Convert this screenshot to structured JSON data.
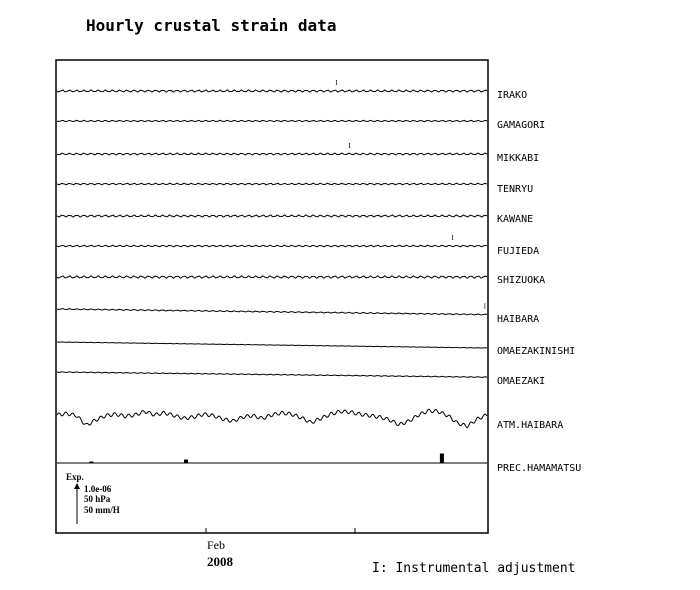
{
  "chart_data": {
    "type": "line",
    "title": "Hourly crustal strain data",
    "xlabel": "",
    "ylabel": "",
    "x_ticks": [
      {
        "label": "Feb",
        "sublabel": "2008"
      }
    ],
    "series": [
      {
        "name": "IRAKO",
        "trend": 0.0,
        "amp": 0.8,
        "cycles": 60,
        "adjustments": [
          0.65
        ]
      },
      {
        "name": "GAMAGORI",
        "trend": 0.0,
        "amp": 0.5,
        "cycles": 60,
        "adjustments": []
      },
      {
        "name": "MIKKABI",
        "trend": 0.0,
        "amp": 0.7,
        "cycles": 60,
        "adjustments": [
          0.68
        ]
      },
      {
        "name": "TENRYU",
        "trend": 0.0,
        "amp": 0.6,
        "cycles": 60,
        "adjustments": []
      },
      {
        "name": "KAWANE",
        "trend": 0.0,
        "amp": 0.8,
        "cycles": 60,
        "adjustments": []
      },
      {
        "name": "FUJIEDA",
        "trend": 0.0,
        "amp": 0.6,
        "cycles": 60,
        "adjustments": [
          0.92
        ]
      },
      {
        "name": "SHIZUOKA",
        "trend": 0.0,
        "amp": 0.9,
        "cycles": 60,
        "adjustments": []
      },
      {
        "name": "HAIBARA",
        "trend": 0.7,
        "amp": 0.4,
        "cycles": 60,
        "adjustments": [
          0.995
        ]
      },
      {
        "name": "OMAEZAKINISHI",
        "trend": 0.75,
        "amp": 0.15,
        "cycles": 60,
        "adjustments": []
      },
      {
        "name": "OMAEZAKI",
        "trend": 0.65,
        "amp": 0.3,
        "cycles": 60,
        "adjustments": []
      }
    ],
    "atm_series": {
      "name": "ATM.HAIBARA",
      "values": [
        0.3,
        0.5,
        0.2,
        -1.2,
        -0.4,
        0.2,
        0.4,
        0.1,
        0.3,
        0.8,
        0.3,
        0.6,
        0.2,
        -0.2,
        0.0,
        0.4,
        0.2,
        -0.3,
        -0.6,
        0.0,
        0.2,
        -0.2,
        0.3,
        0.6,
        0.4,
        -0.1,
        -0.8,
        -0.2,
        0.4,
        0.8,
        0.7,
        0.4,
        0.2,
        0.0,
        -0.4,
        -1.1,
        -0.6,
        0.3,
        0.9,
        0.8,
        0.2,
        -0.9,
        -1.3,
        -0.3,
        0.3
      ]
    },
    "prec_series": {
      "name": "PREC.HAMAMATSU",
      "spikes": [
        {
          "x": 0.08,
          "v": 0.15
        },
        {
          "x": 0.3,
          "v": 0.35
        },
        {
          "x": 0.4,
          "v": 0.05
        },
        {
          "x": 0.895,
          "v": 0.95
        }
      ]
    },
    "scale_legend": {
      "heading": "Exp.",
      "lines": [
        "1.0e-06",
        "50 hPa",
        "50 mm/H"
      ]
    },
    "legend_note": "I: Instrumental adjustment",
    "adjustment_marker": "I"
  }
}
